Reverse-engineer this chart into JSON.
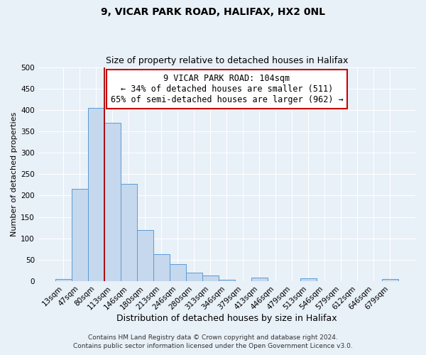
{
  "title": "9, VICAR PARK ROAD, HALIFAX, HX2 0NL",
  "subtitle": "Size of property relative to detached houses in Halifax",
  "xlabel": "Distribution of detached houses by size in Halifax",
  "ylabel": "Number of detached properties",
  "bin_labels": [
    "13sqm",
    "47sqm",
    "80sqm",
    "113sqm",
    "146sqm",
    "180sqm",
    "213sqm",
    "246sqm",
    "280sqm",
    "313sqm",
    "346sqm",
    "379sqm",
    "413sqm",
    "446sqm",
    "479sqm",
    "513sqm",
    "546sqm",
    "579sqm",
    "612sqm",
    "646sqm",
    "679sqm"
  ],
  "bar_values": [
    5,
    215,
    405,
    370,
    228,
    120,
    63,
    40,
    20,
    14,
    3,
    0,
    8,
    0,
    0,
    6,
    0,
    0,
    0,
    0,
    5
  ],
  "bar_color": "#c5d8ed",
  "bar_edge_color": "#5b9bd5",
  "vline_color": "#aa0000",
  "annotation_line1": "9 VICAR PARK ROAD: 104sqm",
  "annotation_line2": "← 34% of detached houses are smaller (511)",
  "annotation_line3": "65% of semi-detached houses are larger (962) →",
  "ylim": [
    0,
    500
  ],
  "yticks": [
    0,
    50,
    100,
    150,
    200,
    250,
    300,
    350,
    400,
    450,
    500
  ],
  "background_color": "#e8f0f8",
  "grid_color": "#ffffff",
  "footer_line1": "Contains HM Land Registry data © Crown copyright and database right 2024.",
  "footer_line2": "Contains public sector information licensed under the Open Government Licence v3.0.",
  "title_fontsize": 10,
  "subtitle_fontsize": 9,
  "xlabel_fontsize": 9,
  "ylabel_fontsize": 8,
  "tick_fontsize": 7.5,
  "annotation_fontsize": 8.5,
  "footer_fontsize": 6.5
}
